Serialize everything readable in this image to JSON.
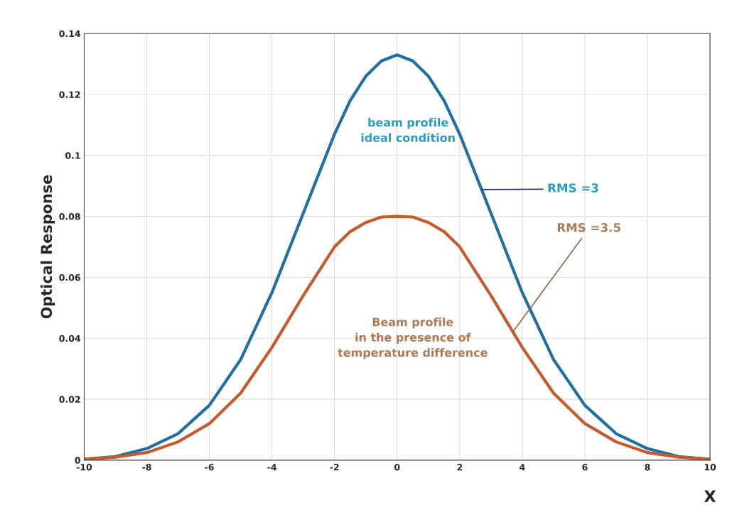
{
  "chart_data": {
    "type": "line",
    "xlabel": "X",
    "ylabel": "Optical Response",
    "x": [
      -10,
      -9,
      -8,
      -7,
      -6,
      -5,
      -4,
      -3,
      -2,
      -1.5,
      -1,
      -0.5,
      0,
      0.5,
      1,
      1.5,
      2,
      3,
      4,
      5,
      6,
      7,
      8,
      9,
      10
    ],
    "series": [
      {
        "color": "#1f6fa3",
        "values": [
          0.0003,
          0.0012,
          0.0038,
          0.0087,
          0.018,
          0.033,
          0.055,
          0.081,
          0.107,
          0.118,
          0.126,
          0.131,
          0.133,
          0.131,
          0.126,
          0.118,
          0.107,
          0.081,
          0.055,
          0.033,
          0.018,
          0.0087,
          0.0038,
          0.0012,
          0.0003
        ]
      },
      {
        "color": "#c55a2a",
        "values": [
          0.0003,
          0.001,
          0.0025,
          0.006,
          0.012,
          0.022,
          0.037,
          0.054,
          0.07,
          0.075,
          0.078,
          0.0798,
          0.08,
          0.0798,
          0.078,
          0.075,
          0.07,
          0.054,
          0.037,
          0.022,
          0.012,
          0.006,
          0.0025,
          0.001,
          0.0003
        ]
      }
    ],
    "xlim": [
      -10,
      10
    ],
    "ylim": [
      0,
      0.14
    ],
    "xticks": [
      -10,
      -8,
      -6,
      -4,
      -2,
      0,
      2,
      4,
      6,
      8,
      10
    ],
    "yticks": [
      0,
      0.02,
      0.04,
      0.06,
      0.08,
      0.1,
      0.12,
      0.14
    ],
    "grid": true,
    "line_style": "solid",
    "marker": "none",
    "annotations": [
      "beam profile\nideal condition",
      {
        "text": "RMS =3",
        "x": 2.7,
        "y": 0.0888
      },
      {
        "text": "RMS =3.5",
        "x": 3.7,
        "y": 0.0421
      },
      "Beam profile\nin the presence of\ntemperature difference"
    ]
  }
}
